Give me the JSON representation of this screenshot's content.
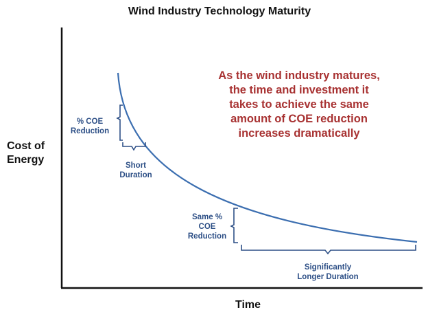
{
  "title": "Wind Industry Technology Maturity",
  "ylabel_line1": "Cost of",
  "ylabel_line2": "Energy",
  "xlabel": "Time",
  "callout": {
    "lines": [
      "As the wind industry matures,",
      "the time and investment it",
      "takes to achieve the same",
      "amount of COE reduction",
      "increases dramatically"
    ]
  },
  "annotations": {
    "coe_reduction_1": [
      "% COE",
      "Reduction"
    ],
    "short_duration": [
      "Short",
      "Duration"
    ],
    "coe_reduction_2": [
      "Same %",
      "COE",
      "Reduction"
    ],
    "longer_duration": [
      "Significantly",
      "Longer Duration"
    ]
  },
  "colors": {
    "curve": "#3b6eb0",
    "bracket": "#2d4f86",
    "callout": "#a83232",
    "axis": "#111111"
  }
}
